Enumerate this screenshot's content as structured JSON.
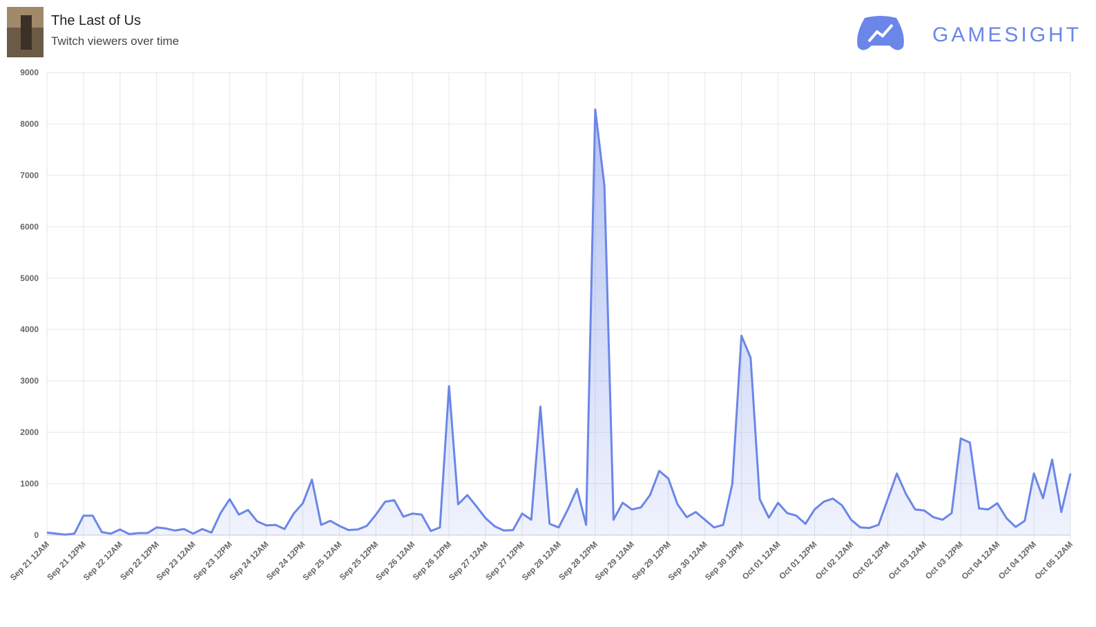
{
  "brand": "GAMESIGHT",
  "chart_data": {
    "type": "area",
    "title": "The Last of Us",
    "subtitle": "Twitch viewers over time",
    "color": "#6a86e8",
    "grid": true,
    "ylim": [
      0,
      9000
    ],
    "yticks": [
      0,
      1000,
      2000,
      3000,
      4000,
      5000,
      6000,
      7000,
      8000,
      9000
    ],
    "categories": [
      "Sep 21 12AM",
      null,
      null,
      null,
      "Sep 21 12PM",
      null,
      null,
      null,
      "Sep 22 12AM",
      null,
      null,
      null,
      "Sep 22 12PM",
      null,
      null,
      null,
      "Sep 23 12AM",
      null,
      null,
      null,
      "Sep 23 12PM",
      null,
      null,
      null,
      "Sep 24 12AM",
      null,
      null,
      null,
      "Sep 24 12PM",
      null,
      null,
      null,
      "Sep 25 12AM",
      null,
      null,
      null,
      "Sep 25 12PM",
      null,
      null,
      null,
      "Sep 26 12AM",
      null,
      null,
      null,
      "Sep 26 12PM",
      null,
      null,
      null,
      "Sep 27 12AM",
      null,
      null,
      null,
      "Sep 27 12PM",
      null,
      null,
      null,
      "Sep 28 12AM",
      null,
      null,
      null,
      "Sep 28 12PM",
      null,
      null,
      null,
      "Sep 29 12AM",
      null,
      null,
      null,
      "Sep 29 12PM",
      null,
      null,
      null,
      "Sep 30 12AM",
      null,
      null,
      null,
      "Sep 30 12PM",
      null,
      null,
      null,
      "Oct 01 12AM",
      null,
      null,
      null,
      "Oct 01 12PM",
      null,
      null,
      null,
      "Oct 02 12AM",
      null,
      null,
      null,
      "Oct 02 12PM",
      null,
      null,
      null,
      "Oct 03 12AM",
      null,
      null,
      null,
      "Oct 03 12PM",
      null,
      null,
      null,
      "Oct 04 12AM",
      null,
      null,
      null,
      "Oct 04 12PM",
      null,
      null,
      null,
      "Oct 05 12AM"
    ],
    "values": [
      50,
      30,
      10,
      30,
      380,
      380,
      60,
      30,
      110,
      20,
      40,
      40,
      150,
      130,
      90,
      120,
      30,
      120,
      50,
      430,
      700,
      400,
      490,
      270,
      190,
      200,
      120,
      420,
      620,
      1080,
      200,
      280,
      180,
      100,
      110,
      180,
      400,
      650,
      680,
      360,
      420,
      400,
      80,
      150,
      2900,
      600,
      780,
      560,
      330,
      170,
      90,
      100,
      420,
      300,
      2500,
      220,
      150,
      500,
      900,
      200,
      8280,
      6800,
      300,
      630,
      500,
      540,
      780,
      1250,
      1100,
      600,
      350,
      450,
      300,
      150,
      200,
      1000,
      3880,
      3450,
      700,
      340,
      630,
      430,
      380,
      220,
      500,
      650,
      710,
      580,
      300,
      150,
      140,
      200,
      700,
      1200,
      800,
      500,
      480,
      350,
      300,
      430,
      1880,
      1800,
      520,
      500,
      620,
      330,
      160,
      280,
      1200,
      720,
      1470,
      450,
      1200
    ]
  }
}
